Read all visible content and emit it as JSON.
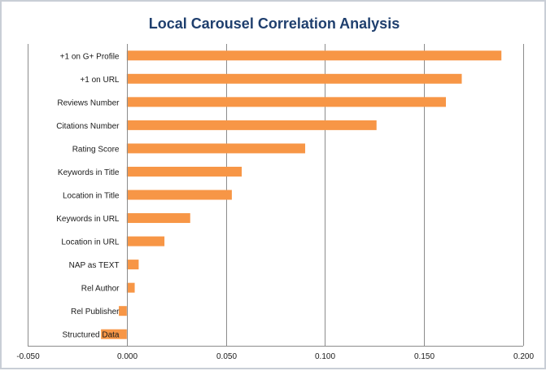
{
  "chart_data": {
    "type": "bar",
    "orientation": "horizontal",
    "title": "Local Carousel Correlation Analysis",
    "xlabel": "",
    "ylabel": "",
    "categories": [
      "+1 on G+ Profile",
      "+1 on URL",
      "Reviews Number",
      "Citations Number",
      "Rating Score",
      "Keywords in Title",
      "Location in Title",
      "Keywords in URL",
      "Location in URL",
      "NAP as TEXT",
      "Rel Author",
      "Rel Publisher",
      "Structured Data"
    ],
    "values": [
      0.189,
      0.169,
      0.161,
      0.126,
      0.09,
      0.058,
      0.053,
      0.032,
      0.019,
      0.006,
      0.004,
      -0.004,
      -0.013
    ],
    "xlim": [
      -0.05,
      0.2
    ],
    "xticks": [
      -0.05,
      0,
      0.05,
      0.1,
      0.15,
      0.2
    ],
    "xtick_labels": [
      "-0.050",
      "0.000",
      "0.050",
      "0.100",
      "0.150",
      "0.200"
    ],
    "grid": "vertical",
    "legend": "none",
    "bar_color": "#f79646",
    "title_color": "#1f3f6e"
  }
}
